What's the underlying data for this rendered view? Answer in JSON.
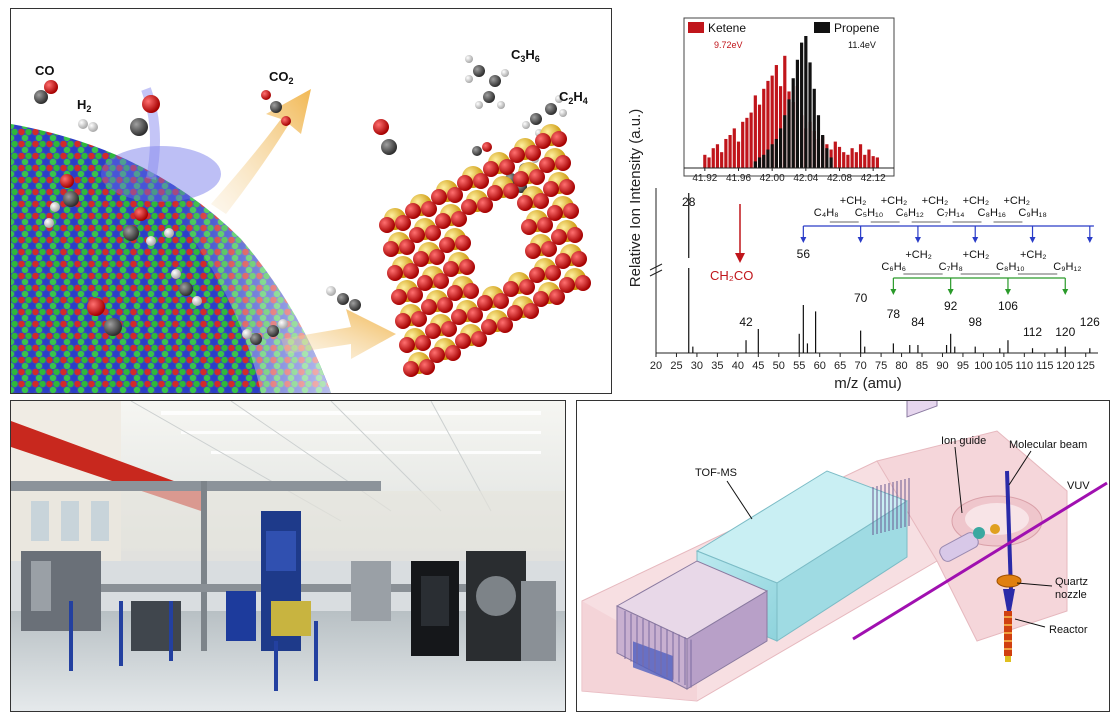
{
  "catalyst_panel": {
    "molecules": {
      "co": "CO",
      "h2": "H",
      "h2_sub": "2",
      "co2": "CO",
      "co2_sub": "2",
      "c3h6_a": "C",
      "c3h6_b": "3",
      "c3h6_c": "H",
      "c3h6_d": "6",
      "c2h4_a": "C",
      "c2h4_b": "2",
      "c2h4_c": "H",
      "c2h4_d": "4"
    }
  },
  "spectrum_panel": {
    "ylabel": "Relative Ion Intensity (a.u.)",
    "xlabel": "m/z (amu)",
    "x_ticks": [
      "20",
      "25",
      "30",
      "35",
      "40",
      "45",
      "50",
      "55",
      "60",
      "65",
      "70",
      "75",
      "80",
      "85",
      "90",
      "95",
      "100",
      "105",
      "110",
      "115",
      "120",
      "125"
    ],
    "peak_labels": [
      "28",
      "42",
      "56",
      "70",
      "78",
      "84",
      "92",
      "98",
      "106",
      "112",
      "120",
      "126"
    ],
    "ketene_label": "CH₂CO",
    "series_alkene": [
      "C₄H₈",
      "C₅H₁₀",
      "C₆H₁₂",
      "C₇H₁₄",
      "C₈H₁₆",
      "C₉H₁₈"
    ],
    "series_aromatic": [
      "C₆H₆",
      "C₇H₈",
      "C₈H₁₀",
      "C₉H₁₂"
    ],
    "plus_ch2": "+CH₂",
    "inset": {
      "legend_ketene": "Ketene",
      "legend_propene": "Propene",
      "ketene_energy": "9.72eV",
      "propene_energy": "11.4eV",
      "x_ticks": [
        "41.92",
        "41.96",
        "42.00",
        "42.04",
        "42.08",
        "42.12"
      ]
    }
  },
  "chart_data": {
    "type": "bar",
    "title": "",
    "xlabel": "m/z (amu)",
    "ylabel": "Relative Ion Intensity (a.u.)",
    "xlim": [
      20,
      128
    ],
    "x": [
      28,
      29,
      42,
      45,
      55,
      56,
      57,
      59,
      70,
      71,
      78,
      82,
      84,
      91,
      92,
      93,
      98,
      104,
      106,
      112,
      118,
      120,
      126
    ],
    "values": [
      100,
      4,
      8,
      15,
      12,
      30,
      6,
      26,
      14,
      4,
      6,
      5,
      5,
      5,
      12,
      4,
      4,
      3,
      8,
      3,
      3,
      4,
      3
    ],
    "inset": {
      "type": "bar",
      "xlim": [
        41.9,
        42.14
      ],
      "series": [
        {
          "name": "Ketene",
          "color": "#c0151b",
          "x": [
            41.92,
            41.925,
            41.93,
            41.935,
            41.94,
            41.945,
            41.95,
            41.955,
            41.96,
            41.965,
            41.97,
            41.975,
            41.98,
            41.985,
            41.99,
            41.995,
            42.0,
            42.005,
            42.01,
            42.015,
            42.02,
            42.025,
            42.03,
            42.035,
            42.04,
            42.045,
            42.05,
            42.055,
            42.06,
            42.065,
            42.07,
            42.075,
            42.08,
            42.085,
            42.09,
            42.095,
            42.1,
            42.105,
            42.11,
            42.115,
            42.12,
            42.125
          ],
          "values": [
            10,
            8,
            15,
            18,
            12,
            22,
            25,
            30,
            20,
            35,
            38,
            42,
            55,
            48,
            60,
            66,
            70,
            78,
            62,
            85,
            58,
            50,
            62,
            40,
            30,
            35,
            28,
            22,
            24,
            18,
            14,
            20,
            16,
            12,
            10,
            15,
            12,
            18,
            10,
            14,
            9,
            8
          ]
        },
        {
          "name": "Propene",
          "color": "#111111",
          "x": [
            41.98,
            41.985,
            41.99,
            41.995,
            42.0,
            42.005,
            42.01,
            42.015,
            42.02,
            42.025,
            42.03,
            42.035,
            42.04,
            42.045,
            42.05,
            42.055,
            42.06,
            42.065,
            42.07
          ],
          "values": [
            5,
            8,
            10,
            14,
            18,
            22,
            30,
            40,
            52,
            68,
            82,
            95,
            100,
            80,
            60,
            40,
            25,
            15,
            8
          ]
        }
      ]
    }
  },
  "apparatus_panel": {
    "labels": {
      "tof": "TOF-MS",
      "ion_guide": "Ion guide",
      "molecular_beam": "Molecular beam",
      "vuv": "VUV",
      "quartz_1": "Quartz",
      "quartz_2": "nozzle",
      "reactor": "Reactor"
    }
  }
}
